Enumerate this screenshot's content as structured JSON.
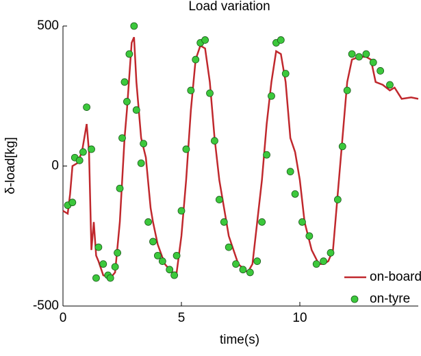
{
  "chart_data": {
    "type": "line",
    "title": "Load variation",
    "x_label": "time(s)",
    "y_label": "δ-load[kg]",
    "xlim": [
      0,
      15
    ],
    "ylim": [
      -500,
      500
    ],
    "xticks": [
      0,
      5,
      10
    ],
    "yticks": [
      -500,
      0,
      500
    ],
    "legend": "lower right",
    "series": [
      {
        "name": "on-board",
        "color": "#c0282d",
        "kind": "line",
        "x": [
          0,
          0.2,
          0.3,
          0.4,
          0.6,
          0.8,
          1.0,
          1.1,
          1.2,
          1.3,
          1.4,
          1.5,
          1.7,
          2.0,
          2.2,
          2.4,
          2.5,
          2.6,
          2.7,
          2.9,
          3.0,
          3.1,
          3.3,
          3.5,
          3.7,
          3.8,
          4.0,
          4.3,
          4.6,
          4.8,
          5.0,
          5.2,
          5.4,
          5.6,
          5.8,
          6.0,
          6.2,
          6.4,
          6.6,
          6.8,
          7.0,
          7.4,
          7.8,
          8.0,
          8.2,
          8.4,
          8.6,
          8.8,
          9.0,
          9.2,
          9.4,
          9.6,
          9.8,
          10.0,
          10.2,
          10.5,
          10.8,
          11.0,
          11.2,
          11.4,
          11.6,
          11.8,
          12.0,
          12.2,
          12.5,
          12.8,
          13.0,
          13.2,
          13.5,
          13.8,
          14.0,
          14.3,
          14.7,
          15.0
        ],
        "values": [
          -160,
          -170,
          -100,
          0,
          10,
          50,
          150,
          50,
          -300,
          -200,
          -320,
          -340,
          -390,
          -400,
          -380,
          -200,
          -50,
          100,
          200,
          440,
          460,
          300,
          100,
          30,
          -150,
          -200,
          -280,
          -350,
          -380,
          -380,
          -250,
          -50,
          200,
          380,
          430,
          420,
          300,
          100,
          -50,
          -150,
          -250,
          -350,
          -380,
          -350,
          -200,
          -50,
          150,
          300,
          410,
          400,
          300,
          100,
          50,
          -50,
          -200,
          -300,
          -350,
          -350,
          -340,
          -300,
          -100,
          100,
          300,
          380,
          390,
          390,
          380,
          300,
          290,
          270,
          280,
          240,
          245,
          240
        ]
      },
      {
        "name": "on-tyre",
        "color": "#3cc83c",
        "kind": "scatter",
        "x": [
          0.2,
          0.4,
          0.5,
          0.7,
          0.85,
          1.0,
          1.2,
          1.4,
          1.5,
          1.7,
          1.9,
          2.0,
          2.2,
          2.3,
          2.4,
          2.5,
          2.6,
          2.7,
          2.8,
          3.0,
          3.1,
          3.3,
          3.4,
          3.6,
          3.8,
          4.0,
          4.2,
          4.5,
          4.7,
          4.8,
          5.0,
          5.2,
          5.4,
          5.6,
          5.8,
          6.0,
          6.2,
          6.4,
          6.6,
          6.8,
          7.0,
          7.3,
          7.6,
          7.9,
          8.2,
          8.4,
          8.6,
          8.8,
          9.0,
          9.2,
          9.4,
          9.6,
          9.8,
          10.1,
          10.4,
          10.7,
          11.0,
          11.3,
          11.6,
          11.8,
          12.0,
          12.2,
          12.5,
          12.8,
          13.1,
          13.4,
          13.8
        ],
        "values": [
          -140,
          -130,
          30,
          20,
          50,
          210,
          60,
          -400,
          -290,
          -350,
          -390,
          -400,
          -360,
          -310,
          -80,
          100,
          300,
          230,
          400,
          500,
          200,
          10,
          80,
          -200,
          -270,
          -320,
          -340,
          -370,
          -390,
          -320,
          -160,
          60,
          270,
          380,
          440,
          450,
          260,
          90,
          -120,
          -200,
          -290,
          -350,
          -370,
          -380,
          -340,
          -200,
          40,
          250,
          440,
          450,
          330,
          -20,
          -100,
          -200,
          -250,
          -350,
          -340,
          -310,
          -120,
          70,
          270,
          400,
          390,
          400,
          370,
          340,
          290
        ]
      }
    ]
  }
}
